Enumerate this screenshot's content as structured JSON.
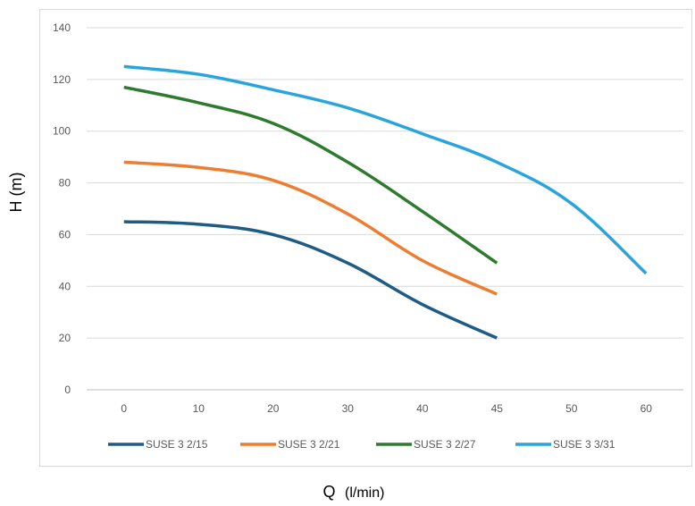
{
  "chart_data": {
    "type": "line",
    "title": "",
    "xlabel": "Q",
    "xlabel_unit": "(l/min)",
    "ylabel": "H (m)",
    "categories": [
      "0",
      "10",
      "20",
      "30",
      "40",
      "45",
      "50",
      "60"
    ],
    "ylim": [
      0,
      140
    ],
    "yticks": [
      0,
      20,
      40,
      60,
      80,
      100,
      120,
      140
    ],
    "grid": "horizontal",
    "legend": "bottom",
    "series": [
      {
        "name": "SUSE 3 2/15",
        "color": "#1f5c85",
        "values": [
          65,
          64,
          60,
          49,
          33,
          20,
          null,
          null
        ]
      },
      {
        "name": "SUSE 3 2/21",
        "color": "#ed7d31",
        "values": [
          88,
          86,
          81,
          68,
          50,
          37,
          null,
          null
        ]
      },
      {
        "name": "SUSE 3 2/27",
        "color": "#2e7a2e",
        "values": [
          117,
          111,
          103,
          88,
          69,
          49,
          null,
          null
        ]
      },
      {
        "name": "SUSE 3 3/31",
        "color": "#2aa4dc",
        "values": [
          125,
          122,
          116,
          109,
          99,
          88,
          72,
          45
        ]
      }
    ]
  }
}
